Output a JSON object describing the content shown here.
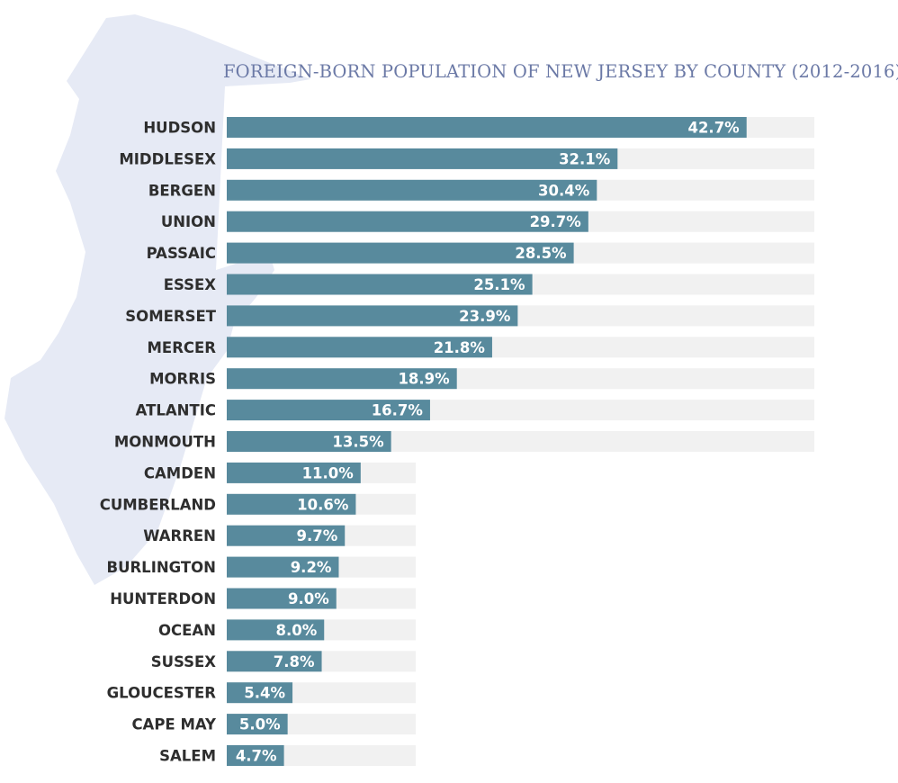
{
  "colors": {
    "bar": "#588a9d",
    "track": "#f1f1f1",
    "title": "#6b79a6",
    "map_fill": "#e6eaf5",
    "label": "#2e2e2e",
    "value_label": "#ffffff"
  },
  "chart_data": {
    "type": "bar",
    "orientation": "horizontal",
    "title": "FOREIGN-BORN POPULATION OF NEW JERSEY BY COUNTY (2012-2016)",
    "xlabel": "",
    "ylabel": "",
    "xlim": [
      0,
      50
    ],
    "grid": false,
    "legend": "none",
    "categories": [
      "HUDSON",
      "MIDDLESEX",
      "BERGEN",
      "UNION",
      "PASSAIC",
      "ESSEX",
      "SOMERSET",
      "MERCER",
      "MORRIS",
      "ATLANTIC",
      "MONMOUTH",
      "CAMDEN",
      "CUMBERLAND",
      "WARREN",
      "BURLINGTON",
      "HUNTERDON",
      "OCEAN",
      "SUSSEX",
      "GLOUCESTER",
      "CAPE MAY",
      "SALEM"
    ],
    "values": [
      42.7,
      32.1,
      30.4,
      29.7,
      28.5,
      25.1,
      23.9,
      21.8,
      18.9,
      16.7,
      13.5,
      11.0,
      10.6,
      9.7,
      9.2,
      9.0,
      8.0,
      7.8,
      5.4,
      5.0,
      4.7
    ],
    "value_labels": [
      "42.7%",
      "32.1%",
      "30.4%",
      "29.7%",
      "28.5%",
      "25.1%",
      "23.9%",
      "21.8%",
      "18.9%",
      "16.7%",
      "13.5%",
      "11.0%",
      "10.6%",
      "9.7%",
      "9.2%",
      "9.0%",
      "8.0%",
      "7.8%",
      "5.4%",
      "5.0%",
      "4.7%"
    ]
  }
}
